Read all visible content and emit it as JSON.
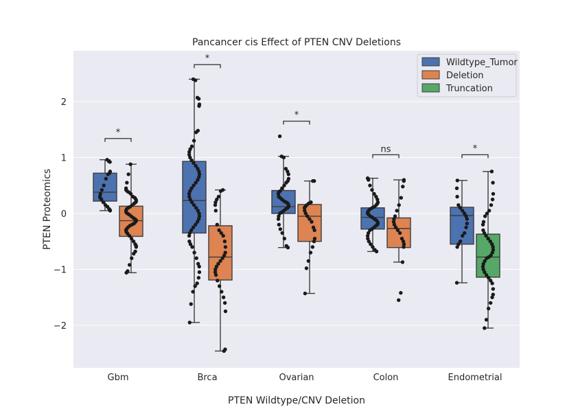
{
  "chart_data": {
    "type": "box",
    "title": "Pancancer cis Effect of PTEN CNV Deletions",
    "xlabel": "PTEN Wildtype/CNV Deletion",
    "ylabel": "PTEN Proteomics",
    "ylim": [
      -2.8,
      2.9
    ],
    "yticks": [
      -2,
      -1,
      0,
      1,
      2
    ],
    "ytick_labels": [
      "−2",
      "−1",
      "0",
      "1",
      "2"
    ],
    "grid": true,
    "legend_position": "top-right",
    "categories": [
      "Gbm",
      "Brca",
      "Ovarian",
      "Colon",
      "Endometrial"
    ],
    "series": [
      {
        "name": "Wildtype_Tumor",
        "color": "#4c72b0"
      },
      {
        "name": "Deletion",
        "color": "#dd8452"
      },
      {
        "name": "Truncation",
        "color": "#55a868"
      }
    ],
    "boxes": [
      {
        "category": "Gbm",
        "series": "Wildtype_Tumor",
        "whisker_low": 0.05,
        "q1": 0.22,
        "median": 0.38,
        "q3": 0.72,
        "whisker_high": 0.96,
        "points": [
          0.96,
          0.93,
          0.92,
          0.75,
          0.72,
          0.7,
          0.62,
          0.5,
          0.42,
          0.35,
          0.3,
          0.28,
          0.25,
          0.2,
          0.15,
          0.12,
          0.08,
          0.06,
          0.05
        ]
      },
      {
        "category": "Gbm",
        "series": "Deletion",
        "whisker_low": -1.06,
        "q1": -0.41,
        "median": -0.13,
        "q3": 0.13,
        "whisker_high": 0.88,
        "points": [
          0.88,
          0.7,
          0.55,
          0.45,
          0.42,
          0.4,
          0.38,
          0.35,
          0.3,
          0.28,
          0.25,
          0.22,
          0.2,
          0.18,
          0.15,
          0.12,
          0.1,
          0.08,
          0.05,
          0.02,
          0.0,
          -0.02,
          -0.05,
          -0.08,
          -0.1,
          -0.12,
          -0.13,
          -0.15,
          -0.18,
          -0.2,
          -0.22,
          -0.25,
          -0.28,
          -0.3,
          -0.33,
          -0.36,
          -0.4,
          -0.45,
          -0.5,
          -0.55,
          -0.58,
          -0.6,
          -0.68,
          -0.72,
          -0.8,
          -0.92,
          -1.03,
          -1.06
        ]
      },
      {
        "category": "Brca",
        "series": "Wildtype_Tumor",
        "whisker_low": -1.95,
        "q1": -0.35,
        "median": 0.23,
        "q3": 0.93,
        "whisker_high": 2.4,
        "points": [
          2.4,
          2.38,
          2.07,
          2.05,
          1.95,
          1.92,
          1.48,
          1.45,
          1.3,
          1.2,
          1.15,
          1.1,
          1.05,
          1.0,
          0.95,
          0.9,
          0.85,
          0.8,
          0.75,
          0.7,
          0.65,
          0.6,
          0.55,
          0.5,
          0.45,
          0.4,
          0.35,
          0.3,
          0.25,
          0.2,
          0.15,
          0.1,
          0.05,
          0.0,
          -0.05,
          -0.1,
          -0.15,
          -0.2,
          -0.25,
          -0.3,
          -0.35,
          -0.4,
          -0.5,
          -0.55,
          -0.6,
          -0.7,
          -0.8,
          -0.9,
          -0.95,
          -1.05,
          -1.15,
          -1.25,
          -1.3,
          -1.4,
          -1.62,
          -1.95
        ]
      },
      {
        "category": "Brca",
        "series": "Deletion",
        "whisker_low": -2.46,
        "q1": -1.19,
        "median": -0.78,
        "q3": -0.22,
        "whisker_high": 0.42,
        "points": [
          0.42,
          0.4,
          0.3,
          0.25,
          0.2,
          0.15,
          0.05,
          -0.2,
          -0.3,
          -0.35,
          -0.4,
          -0.5,
          -0.6,
          -0.7,
          -0.75,
          -0.8,
          -0.85,
          -0.9,
          -0.95,
          -1.0,
          -1.05,
          -1.1,
          -1.2,
          -1.3,
          -1.4,
          -1.5,
          -1.6,
          -1.75,
          -2.43,
          -2.46
        ]
      },
      {
        "category": "Ovarian",
        "series": "Wildtype_Tumor",
        "whisker_low": -0.61,
        "q1": 0.0,
        "median": 0.12,
        "q3": 0.41,
        "whisker_high": 1.02,
        "points": [
          1.38,
          1.02,
          1.0,
          0.8,
          0.75,
          0.7,
          0.62,
          0.58,
          0.55,
          0.5,
          0.45,
          0.4,
          0.38,
          0.35,
          0.3,
          0.28,
          0.25,
          0.22,
          0.2,
          0.18,
          0.15,
          0.12,
          0.1,
          0.08,
          0.05,
          0.02,
          0.0,
          -0.05,
          -0.1,
          -0.2,
          -0.28,
          -0.35,
          -0.45,
          -0.58,
          -0.61
        ]
      },
      {
        "category": "Ovarian",
        "series": "Deletion",
        "whisker_low": -1.43,
        "q1": -0.5,
        "median": -0.05,
        "q3": 0.16,
        "whisker_high": 0.58,
        "points": [
          0.58,
          0.58,
          0.2,
          0.18,
          0.15,
          0.12,
          0.1,
          0.05,
          0.0,
          -0.05,
          -0.1,
          -0.15,
          -0.25,
          -0.3,
          -0.45,
          -0.5,
          -0.6,
          -0.7,
          -0.85,
          -0.98,
          -1.43
        ]
      },
      {
        "category": "Colon",
        "series": "Wildtype_Tumor",
        "whisker_low": -0.68,
        "q1": -0.28,
        "median": -0.07,
        "q3": 0.1,
        "whisker_high": 0.63,
        "points": [
          0.63,
          0.6,
          0.5,
          0.42,
          0.35,
          0.3,
          0.25,
          0.2,
          0.18,
          0.15,
          0.12,
          0.1,
          0.08,
          0.05,
          0.02,
          0.0,
          -0.02,
          -0.05,
          -0.07,
          -0.1,
          -0.12,
          -0.15,
          -0.18,
          -0.2,
          -0.22,
          -0.25,
          -0.28,
          -0.3,
          -0.35,
          -0.4,
          -0.45,
          -0.5,
          -0.55,
          -0.6,
          -0.65,
          -0.68
        ]
      },
      {
        "category": "Colon",
        "series": "Deletion",
        "whisker_low": -0.87,
        "q1": -0.61,
        "median": -0.27,
        "q3": -0.08,
        "whisker_high": 0.6,
        "points": [
          0.6,
          0.58,
          0.48,
          0.28,
          0.15,
          0.05,
          -0.05,
          -0.1,
          -0.15,
          -0.2,
          -0.25,
          -0.3,
          -0.35,
          -0.45,
          -0.5,
          -0.55,
          -0.6,
          -0.87,
          -1.42,
          -1.55
        ]
      },
      {
        "category": "Endometrial",
        "series": "Wildtype_Tumor",
        "whisker_low": -1.24,
        "q1": -0.55,
        "median": -0.04,
        "q3": 0.11,
        "whisker_high": 0.59,
        "points": [
          0.59,
          0.45,
          0.3,
          0.15,
          0.1,
          0.05,
          0.0,
          -0.05,
          -0.1,
          -0.18,
          -0.25,
          -0.35,
          -0.4,
          -0.5,
          -0.55,
          -0.6,
          -1.24
        ]
      },
      {
        "category": "Endometrial",
        "series": "Truncation",
        "whisker_low": -2.05,
        "q1": -1.14,
        "median": -0.78,
        "q3": -0.37,
        "whisker_high": 0.75,
        "points": [
          0.75,
          0.55,
          0.35,
          0.25,
          0.15,
          0.05,
          0.0,
          -0.05,
          -0.15,
          -0.2,
          -0.3,
          -0.35,
          -0.4,
          -0.45,
          -0.5,
          -0.55,
          -0.6,
          -0.65,
          -0.7,
          -0.75,
          -0.78,
          -0.8,
          -0.85,
          -0.9,
          -0.95,
          -1.0,
          -1.05,
          -1.1,
          -1.15,
          -1.2,
          -1.25,
          -1.35,
          -1.45,
          -1.5,
          -1.6,
          -1.7,
          -1.9,
          -2.05
        ]
      }
    ],
    "annotations": [
      {
        "category": "Gbm",
        "text": "*",
        "y": 1.34
      },
      {
        "category": "Brca",
        "text": "*",
        "y": 2.66
      },
      {
        "category": "Ovarian",
        "text": "*",
        "y": 1.65
      },
      {
        "category": "Colon",
        "text": "ns",
        "y": 1.05
      },
      {
        "category": "Endometrial",
        "text": "*",
        "y": 1.05
      }
    ]
  }
}
